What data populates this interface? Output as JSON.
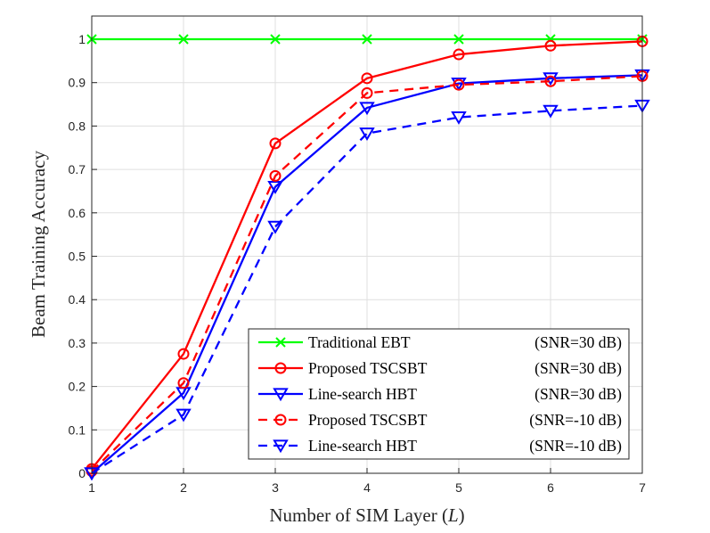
{
  "chart_data": {
    "type": "line",
    "title": "",
    "xlabel": "Number of SIM Layer (",
    "xlabel_var": "L",
    "xlabel_end": ")",
    "ylabel": "Beam Training Accuracy",
    "xlim": [
      1,
      7
    ],
    "ylim": [
      0,
      1
    ],
    "grid": true,
    "legend_position": "bottom-right",
    "x": [
      1,
      2,
      3,
      4,
      5,
      6,
      7
    ],
    "xticks": [
      "1",
      "2",
      "3",
      "4",
      "5",
      "6",
      "7"
    ],
    "yticks": [
      "0",
      "0.1",
      "0.2",
      "0.3",
      "0.4",
      "0.5",
      "0.6",
      "0.7",
      "0.8",
      "0.9",
      "1"
    ],
    "series": [
      {
        "name": "Traditional EBT",
        "snr": "(SNR=30 dB)",
        "color": "#00ff00",
        "dash": "solid",
        "marker": "x",
        "values": [
          1,
          1,
          1,
          1,
          1,
          1,
          1
        ]
      },
      {
        "name": "Proposed TSCSBT",
        "snr": "(SNR=30 dB)",
        "color": "#ff0000",
        "dash": "solid",
        "marker": "circle",
        "values": [
          0.01,
          0.275,
          0.76,
          0.91,
          0.965,
          0.985,
          0.995
        ]
      },
      {
        "name": "Line-search HBT",
        "snr": "(SNR=30 dB)",
        "color": "#0000ff",
        "dash": "solid",
        "marker": "triangle-down",
        "values": [
          0.0,
          0.185,
          0.66,
          0.842,
          0.898,
          0.91,
          0.917
        ]
      },
      {
        "name": "Proposed TSCSBT",
        "snr": "(SNR=-10 dB)",
        "color": "#ff0000",
        "dash": "dashed",
        "marker": "circle",
        "values": [
          0.005,
          0.208,
          0.685,
          0.876,
          0.895,
          0.903,
          0.915
        ]
      },
      {
        "name": "Line-search HBT",
        "snr": "(SNR=-10 dB)",
        "color": "#0000ff",
        "dash": "dashed",
        "marker": "triangle-down",
        "values": [
          0.0,
          0.135,
          0.568,
          0.783,
          0.82,
          0.835,
          0.847
        ]
      }
    ]
  }
}
